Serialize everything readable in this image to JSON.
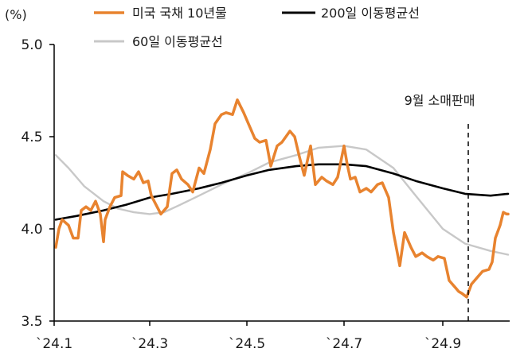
{
  "chart_data": {
    "type": "line",
    "unit_label": "(%)",
    "y_ticks": [
      "5.0",
      "4.5",
      "4.0",
      "3.5"
    ],
    "y_tick_values": [
      5.0,
      4.5,
      4.0,
      3.5
    ],
    "ylim": [
      3.5,
      5.0
    ],
    "x_ticks": [
      "`24.1",
      "`24.3",
      "`24.5",
      "`24.7",
      "`24.9"
    ],
    "x_tick_dates": [
      "2024-01-01",
      "2024-03-01",
      "2024-05-01",
      "2024-07-01",
      "2024-09-01"
    ],
    "xlim": [
      "2024-01-01",
      "2024-10-13"
    ],
    "grid": false,
    "legend_position": "top",
    "annotation": {
      "label": "9월 소매판매",
      "date": "2024-09-17"
    },
    "series": [
      {
        "name": "미국 국채 10년물",
        "color": "#E8832F",
        "points": [
          [
            "2024-01-02",
            3.9
          ],
          [
            "2024-01-04",
            4.0
          ],
          [
            "2024-01-06",
            4.05
          ],
          [
            "2024-01-10",
            4.02
          ],
          [
            "2024-01-13",
            3.95
          ],
          [
            "2024-01-16",
            3.95
          ],
          [
            "2024-01-18",
            4.1
          ],
          [
            "2024-01-21",
            4.12
          ],
          [
            "2024-01-24",
            4.1
          ],
          [
            "2024-01-27",
            4.15
          ],
          [
            "2024-01-30",
            4.08
          ],
          [
            "2024-02-01",
            3.93
          ],
          [
            "2024-02-02",
            4.05
          ],
          [
            "2024-02-05",
            4.12
          ],
          [
            "2024-02-08",
            4.17
          ],
          [
            "2024-02-12",
            4.18
          ],
          [
            "2024-02-13",
            4.31
          ],
          [
            "2024-02-16",
            4.29
          ],
          [
            "2024-02-20",
            4.27
          ],
          [
            "2024-02-23",
            4.31
          ],
          [
            "2024-02-26",
            4.25
          ],
          [
            "2024-02-29",
            4.26
          ],
          [
            "2024-03-02",
            4.18
          ],
          [
            "2024-03-05",
            4.13
          ],
          [
            "2024-03-08",
            4.08
          ],
          [
            "2024-03-12",
            4.12
          ],
          [
            "2024-03-15",
            4.3
          ],
          [
            "2024-03-18",
            4.32
          ],
          [
            "2024-03-21",
            4.27
          ],
          [
            "2024-03-25",
            4.24
          ],
          [
            "2024-03-28",
            4.2
          ],
          [
            "2024-04-01",
            4.33
          ],
          [
            "2024-04-04",
            4.3
          ],
          [
            "2024-04-08",
            4.43
          ],
          [
            "2024-04-11",
            4.57
          ],
          [
            "2024-04-15",
            4.62
          ],
          [
            "2024-04-18",
            4.63
          ],
          [
            "2024-04-22",
            4.62
          ],
          [
            "2024-04-25",
            4.7
          ],
          [
            "2024-04-29",
            4.63
          ],
          [
            "2024-05-02",
            4.57
          ],
          [
            "2024-05-06",
            4.49
          ],
          [
            "2024-05-09",
            4.47
          ],
          [
            "2024-05-13",
            4.48
          ],
          [
            "2024-05-16",
            4.34
          ],
          [
            "2024-05-20",
            4.45
          ],
          [
            "2024-05-23",
            4.47
          ],
          [
            "2024-05-28",
            4.53
          ],
          [
            "2024-05-31",
            4.5
          ],
          [
            "2024-06-03",
            4.39
          ],
          [
            "2024-06-06",
            4.29
          ],
          [
            "2024-06-10",
            4.45
          ],
          [
            "2024-06-13",
            4.24
          ],
          [
            "2024-06-17",
            4.28
          ],
          [
            "2024-06-20",
            4.26
          ],
          [
            "2024-06-24",
            4.24
          ],
          [
            "2024-06-27",
            4.28
          ],
          [
            "2024-07-01",
            4.45
          ],
          [
            "2024-07-03",
            4.35
          ],
          [
            "2024-07-05",
            4.27
          ],
          [
            "2024-07-08",
            4.28
          ],
          [
            "2024-07-11",
            4.2
          ],
          [
            "2024-07-15",
            4.22
          ],
          [
            "2024-07-18",
            4.2
          ],
          [
            "2024-07-22",
            4.24
          ],
          [
            "2024-07-25",
            4.25
          ],
          [
            "2024-07-29",
            4.17
          ],
          [
            "2024-08-01",
            3.98
          ],
          [
            "2024-08-05",
            3.8
          ],
          [
            "2024-08-08",
            3.98
          ],
          [
            "2024-08-12",
            3.9
          ],
          [
            "2024-08-15",
            3.85
          ],
          [
            "2024-08-19",
            3.87
          ],
          [
            "2024-08-22",
            3.85
          ],
          [
            "2024-08-26",
            3.83
          ],
          [
            "2024-08-29",
            3.85
          ],
          [
            "2024-09-02",
            3.84
          ],
          [
            "2024-09-05",
            3.72
          ],
          [
            "2024-09-09",
            3.68
          ],
          [
            "2024-09-11",
            3.66
          ],
          [
            "2024-09-13",
            3.65
          ],
          [
            "2024-09-16",
            3.63
          ],
          [
            "2024-09-19",
            3.7
          ],
          [
            "2024-09-23",
            3.74
          ],
          [
            "2024-09-26",
            3.77
          ],
          [
            "2024-09-30",
            3.78
          ],
          [
            "2024-10-02",
            3.82
          ],
          [
            "2024-10-04",
            3.95
          ],
          [
            "2024-10-07",
            4.02
          ],
          [
            "2024-10-09",
            4.09
          ],
          [
            "2024-10-11",
            4.08
          ],
          [
            "2024-10-12",
            4.08
          ]
        ]
      },
      {
        "name": "200일 이동평균선",
        "color": "#000000",
        "points": [
          [
            "2024-01-02",
            4.05
          ],
          [
            "2024-01-15",
            4.07
          ],
          [
            "2024-02-01",
            4.1
          ],
          [
            "2024-02-15",
            4.13
          ],
          [
            "2024-03-01",
            4.17
          ],
          [
            "2024-03-15",
            4.19
          ],
          [
            "2024-04-01",
            4.22
          ],
          [
            "2024-04-15",
            4.25
          ],
          [
            "2024-05-01",
            4.29
          ],
          [
            "2024-05-15",
            4.32
          ],
          [
            "2024-06-01",
            4.34
          ],
          [
            "2024-06-15",
            4.35
          ],
          [
            "2024-07-01",
            4.35
          ],
          [
            "2024-07-15",
            4.34
          ],
          [
            "2024-08-01",
            4.3
          ],
          [
            "2024-08-15",
            4.26
          ],
          [
            "2024-09-01",
            4.22
          ],
          [
            "2024-09-15",
            4.19
          ],
          [
            "2024-10-01",
            4.18
          ],
          [
            "2024-10-12",
            4.19
          ]
        ]
      },
      {
        "name": "60일 이동평균선",
        "color": "#C8C8C8",
        "points": [
          [
            "2024-01-02",
            4.4
          ],
          [
            "2024-01-10",
            4.33
          ],
          [
            "2024-01-20",
            4.23
          ],
          [
            "2024-02-01",
            4.15
          ],
          [
            "2024-02-10",
            4.11
          ],
          [
            "2024-02-20",
            4.09
          ],
          [
            "2024-03-01",
            4.08
          ],
          [
            "2024-03-10",
            4.09
          ],
          [
            "2024-03-20",
            4.13
          ],
          [
            "2024-04-01",
            4.18
          ],
          [
            "2024-04-15",
            4.24
          ],
          [
            "2024-05-01",
            4.3
          ],
          [
            "2024-05-15",
            4.36
          ],
          [
            "2024-06-01",
            4.4
          ],
          [
            "2024-06-15",
            4.44
          ],
          [
            "2024-07-01",
            4.45
          ],
          [
            "2024-07-15",
            4.43
          ],
          [
            "2024-08-01",
            4.33
          ],
          [
            "2024-08-15",
            4.18
          ],
          [
            "2024-09-01",
            4.0
          ],
          [
            "2024-09-15",
            3.92
          ],
          [
            "2024-10-01",
            3.88
          ],
          [
            "2024-10-12",
            3.86
          ]
        ]
      }
    ]
  }
}
